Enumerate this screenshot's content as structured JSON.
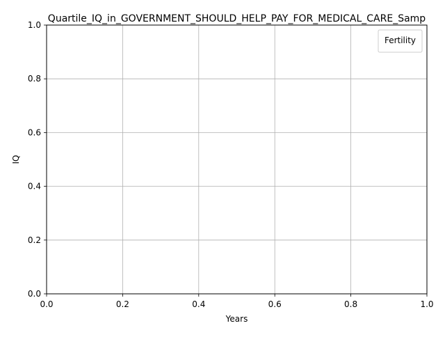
{
  "chart_data": {
    "type": "line",
    "title": "Quartile_IQ_in_GOVERNMENT_SHOULD_HELP_PAY_FOR_MEDICAL_CARE_Samp",
    "xlabel": "Years",
    "ylabel": "IQ",
    "xlim": [
      0.0,
      1.0
    ],
    "ylim": [
      0.0,
      1.0
    ],
    "x_ticks": [
      "0.0",
      "0.2",
      "0.4",
      "0.6",
      "0.8",
      "1.0"
    ],
    "y_ticks": [
      "0.0",
      "0.2",
      "0.4",
      "0.6",
      "0.8",
      "1.0"
    ],
    "grid": true,
    "legend": {
      "title": "Fertility",
      "position": "top-right",
      "entries": []
    },
    "series": []
  }
}
